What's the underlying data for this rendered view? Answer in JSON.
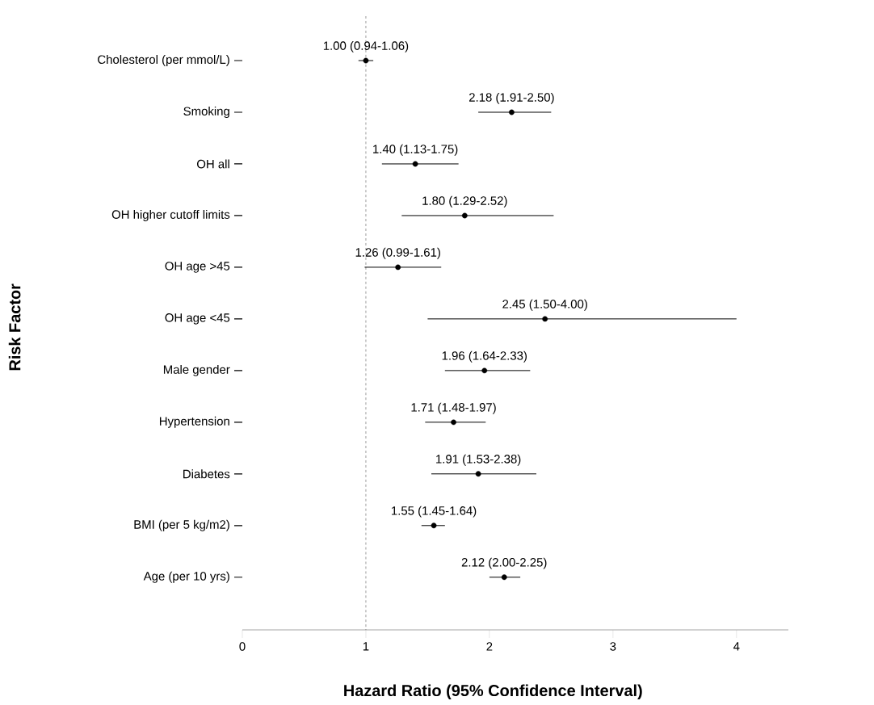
{
  "chart_data": {
    "type": "scatter",
    "orientation": "horizontal",
    "xlabel": "Hazard Ratio (95% Confidence Interval)",
    "ylabel": "Risk Factor",
    "categories": [
      "Cholesterol (per mmol/L)",
      "Smoking",
      "OH all",
      "OH higher cutoff limits",
      "OH age >45",
      "OH age <45",
      "Male gender",
      "Hypertension",
      "Diabetes",
      "BMI (per 5 kg/m2)",
      "Age (per 10 yrs)"
    ],
    "values": [
      1.0,
      2.18,
      1.4,
      1.8,
      1.26,
      2.45,
      1.96,
      1.71,
      1.91,
      1.55,
      2.12
    ],
    "errors": [
      [
        0.94,
        1.06
      ],
      [
        1.91,
        2.5
      ],
      [
        1.13,
        1.75
      ],
      [
        1.29,
        2.52
      ],
      [
        0.99,
        1.61
      ],
      [
        1.5,
        4.0
      ],
      [
        1.64,
        2.33
      ],
      [
        1.48,
        1.97
      ],
      [
        1.53,
        2.38
      ],
      [
        1.45,
        1.64
      ],
      [
        2.0,
        2.25
      ]
    ],
    "value_labels": [
      "1.00 (0.94-1.06)",
      "2.18 (1.91-2.50)",
      "1.40 (1.13-1.75)",
      "1.80 (1.29-2.52)",
      "1.26 (0.99-1.61)",
      "2.45 (1.50-4.00)",
      "1.96 (1.64-2.33)",
      "1.71 (1.48-1.97)",
      "1.91 (1.53-2.38)",
      "1.55 (1.45-1.64)",
      "2.12 (2.00-2.25)"
    ],
    "color": "#000000",
    "marker": "circle",
    "xlim": [
      0,
      4.42
    ],
    "xticks": [
      0,
      1,
      2,
      3,
      4
    ],
    "ref_lines": [
      {
        "axis": "x",
        "value": 1,
        "line_style": "dashed",
        "color": "#000000"
      }
    ],
    "grid": false
  }
}
